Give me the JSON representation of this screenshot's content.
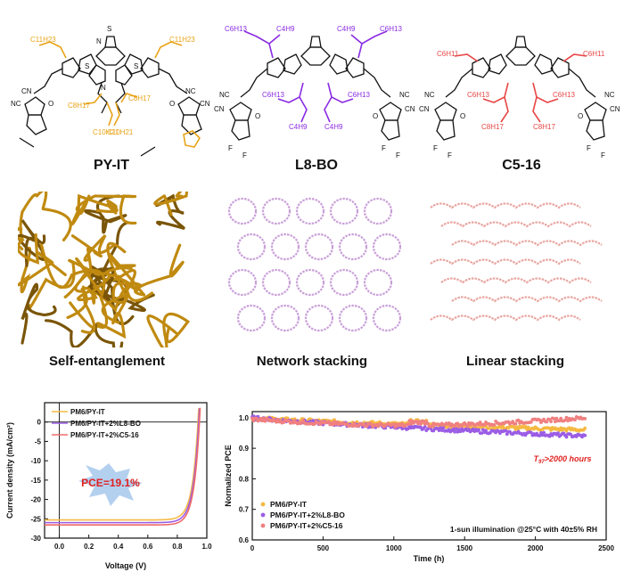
{
  "molecules": [
    {
      "name": "PY-IT",
      "color": "#e8a317",
      "side_chain_labels": [
        "C11H23",
        "C11H23",
        "C8H17",
        "C10H21",
        "C8H17",
        "C10H21"
      ],
      "group_labels": [
        "CN",
        "NC",
        "O",
        "NC",
        "CN",
        "O",
        "S",
        "N",
        "S",
        "N",
        "S"
      ]
    },
    {
      "name": "L8-BO",
      "color": "#8a2be2",
      "side_chain_labels": [
        "C6H13",
        "C4H9",
        "C4H9",
        "C6H13",
        "C6H13",
        "C6H13",
        "C4H9",
        "C4H9"
      ],
      "group_labels": [
        "NC",
        "CN",
        "NC",
        "CN",
        "O",
        "O",
        "F",
        "F",
        "F",
        "F"
      ]
    },
    {
      "name": "C5-16",
      "color": "#e84545",
      "side_chain_labels": [
        "C6H11",
        "C6H11",
        "C6H13",
        "C6H13",
        "C8H17",
        "C8H17"
      ],
      "group_labels": [
        "NC",
        "CN",
        "NC",
        "CN",
        "O",
        "O",
        "F",
        "F",
        "F",
        "F"
      ]
    }
  ],
  "morphologies": [
    {
      "name": "Self-entanglement",
      "color": "#c08a10"
    },
    {
      "name": "Network stacking",
      "color": "#c9a0d8"
    },
    {
      "name": "Linear stacking",
      "color": "#e8a5a0"
    }
  ],
  "chart_data": [
    {
      "type": "line",
      "title": "",
      "xlabel": "Voltage (V)",
      "ylabel": "Current density (mA/cm²)",
      "xlim": [
        -0.1,
        1.0
      ],
      "ylim": [
        -30,
        5
      ],
      "x_ticks": [
        "0.0",
        "0.2",
        "0.4",
        "0.6",
        "0.8",
        "1.0"
      ],
      "y_ticks": [
        "0",
        "-5",
        "-10",
        "-15",
        "-20",
        "-25",
        "-30"
      ],
      "annotation": "PCE=19.1%",
      "legend": "top-left",
      "series": [
        {
          "name": "PM6/PY-IT",
          "color": "#f5b942",
          "jsc": -25.3,
          "voc": 0.94
        },
        {
          "name": "PM6/PY-IT+2%L8-BO",
          "color": "#9b5de5",
          "jsc": -26.0,
          "voc": 0.945
        },
        {
          "name": "PM6/PY-IT+2%C5-16",
          "color": "#f06b6b",
          "jsc": -26.6,
          "voc": 0.95
        }
      ]
    },
    {
      "type": "scatter",
      "title": "",
      "xlabel": "Time (h)",
      "ylabel": "Normalized PCE",
      "xlim": [
        0,
        2500
      ],
      "ylim": [
        0.6,
        1.0
      ],
      "x_ticks": [
        "0",
        "500",
        "1000",
        "1500",
        "2000",
        "2500"
      ],
      "y_ticks": [
        "0.6",
        "0.7",
        "0.8",
        "0.9",
        "1.0"
      ],
      "annotation_t97": "T97>2000 hours",
      "t_sub": "97",
      "condition_text": "1-sun illumination @25°C with 40±5% RH",
      "legend": "bottom-left",
      "series": [
        {
          "name": "PM6/PY-IT",
          "color": "#f5b942",
          "end_value": 0.96,
          "x_max": 2350
        },
        {
          "name": "PM6/PY-IT+2%L8-BO",
          "color": "#9b5de5",
          "end_value": 0.94,
          "x_max": 2350
        },
        {
          "name": "PM6/PY-IT+2%C5-16",
          "color": "#f08080",
          "end_value": 1.0,
          "x_max": 2350
        }
      ]
    }
  ]
}
